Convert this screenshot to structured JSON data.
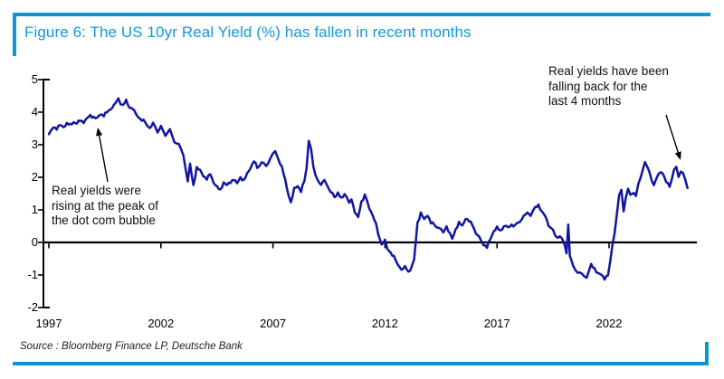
{
  "header": {
    "title": "Figure 6: The US 10yr Real Yield (%) has fallen in recent months"
  },
  "footer": {
    "source": "Source : Bloomberg Finance LP, Deutsche Bank"
  },
  "theme": {
    "accent": "#0c97d4",
    "title_color": "#1399d6",
    "line_color": "#10169f",
    "axis_color": "#000000",
    "annotation_color": "#0f0f0f"
  },
  "chart_data": {
    "type": "line",
    "title": "The US 10yr Real Yield (%) has fallen in recent months",
    "xlabel": "",
    "ylabel": "",
    "grid": false,
    "legend": "none",
    "zero_line": true,
    "ylim": [
      -2,
      5
    ],
    "xlim_years": [
      1996.8,
      2025.9
    ],
    "x_tick_years": [
      1997,
      2002,
      2007,
      2012,
      2017,
      2022
    ],
    "x_tick_labels": [
      "1997",
      "2002",
      "2007",
      "2012",
      "2017",
      "2022"
    ],
    "y_ticks": [
      5,
      4,
      3,
      2,
      1,
      0,
      -1,
      -2
    ],
    "y_tick_labels": [
      "5",
      "4",
      "3",
      "2",
      "1",
      "0",
      "-1",
      "-2"
    ],
    "series": [
      {
        "name": "US 10yr Real Yield (%)",
        "color": "#10169f",
        "points": [
          [
            1997.0,
            3.3
          ],
          [
            1997.1,
            3.45
          ],
          [
            1997.2,
            3.55
          ],
          [
            1997.35,
            3.5
          ],
          [
            1997.5,
            3.6
          ],
          [
            1997.65,
            3.55
          ],
          [
            1997.8,
            3.65
          ],
          [
            1997.95,
            3.6
          ],
          [
            1998.1,
            3.7
          ],
          [
            1998.25,
            3.65
          ],
          [
            1998.4,
            3.75
          ],
          [
            1998.55,
            3.7
          ],
          [
            1998.7,
            3.8
          ],
          [
            1998.85,
            3.9
          ],
          [
            1999.0,
            3.85
          ],
          [
            1999.15,
            3.8
          ],
          [
            1999.3,
            3.95
          ],
          [
            1999.45,
            3.9
          ],
          [
            1999.6,
            4.0
          ],
          [
            1999.75,
            4.1
          ],
          [
            1999.9,
            4.2
          ],
          [
            2000.0,
            4.3
          ],
          [
            2000.1,
            4.45
          ],
          [
            2000.2,
            4.25
          ],
          [
            2000.3,
            4.2
          ],
          [
            2000.45,
            4.35
          ],
          [
            2000.6,
            4.15
          ],
          [
            2000.8,
            4.05
          ],
          [
            2001.0,
            3.85
          ],
          [
            2001.15,
            3.75
          ],
          [
            2001.3,
            3.7
          ],
          [
            2001.5,
            3.5
          ],
          [
            2001.65,
            3.65
          ],
          [
            2001.85,
            3.4
          ],
          [
            2002.0,
            3.55
          ],
          [
            2002.2,
            3.3
          ],
          [
            2002.4,
            3.45
          ],
          [
            2002.6,
            3.1
          ],
          [
            2002.8,
            3.0
          ],
          [
            2003.0,
            2.7
          ],
          [
            2003.1,
            2.3
          ],
          [
            2003.2,
            1.85
          ],
          [
            2003.3,
            2.4
          ],
          [
            2003.45,
            1.75
          ],
          [
            2003.6,
            2.3
          ],
          [
            2003.75,
            2.2
          ],
          [
            2003.9,
            2.05
          ],
          [
            2004.05,
            1.95
          ],
          [
            2004.2,
            2.1
          ],
          [
            2004.35,
            1.85
          ],
          [
            2004.5,
            1.7
          ],
          [
            2004.65,
            1.6
          ],
          [
            2004.8,
            1.85
          ],
          [
            2004.95,
            1.75
          ],
          [
            2005.1,
            1.85
          ],
          [
            2005.25,
            1.95
          ],
          [
            2005.4,
            1.8
          ],
          [
            2005.55,
            2.0
          ],
          [
            2005.7,
            1.9
          ],
          [
            2005.85,
            2.1
          ],
          [
            2006.0,
            2.3
          ],
          [
            2006.15,
            2.5
          ],
          [
            2006.3,
            2.3
          ],
          [
            2006.5,
            2.45
          ],
          [
            2006.7,
            2.35
          ],
          [
            2006.9,
            2.6
          ],
          [
            2007.1,
            2.8
          ],
          [
            2007.25,
            2.55
          ],
          [
            2007.4,
            2.3
          ],
          [
            2007.55,
            1.9
          ],
          [
            2007.7,
            1.45
          ],
          [
            2007.8,
            1.2
          ],
          [
            2007.95,
            1.65
          ],
          [
            2008.1,
            1.75
          ],
          [
            2008.25,
            1.55
          ],
          [
            2008.4,
            1.9
          ],
          [
            2008.5,
            2.3
          ],
          [
            2008.6,
            3.1
          ],
          [
            2008.7,
            2.85
          ],
          [
            2008.8,
            2.35
          ],
          [
            2008.9,
            2.1
          ],
          [
            2009.0,
            1.9
          ],
          [
            2009.15,
            1.75
          ],
          [
            2009.3,
            1.95
          ],
          [
            2009.5,
            1.6
          ],
          [
            2009.65,
            1.5
          ],
          [
            2009.75,
            1.4
          ],
          [
            2009.9,
            1.5
          ],
          [
            2010.05,
            1.35
          ],
          [
            2010.2,
            1.5
          ],
          [
            2010.4,
            1.2
          ],
          [
            2010.5,
            1.35
          ],
          [
            2010.65,
            0.95
          ],
          [
            2010.8,
            0.75
          ],
          [
            2010.95,
            1.25
          ],
          [
            2011.1,
            1.45
          ],
          [
            2011.3,
            1.05
          ],
          [
            2011.45,
            0.85
          ],
          [
            2011.6,
            0.55
          ],
          [
            2011.7,
            0.25
          ],
          [
            2011.85,
            -0.05
          ],
          [
            2012.0,
            0.05
          ],
          [
            2012.1,
            -0.2
          ],
          [
            2012.25,
            -0.3
          ],
          [
            2012.4,
            -0.45
          ],
          [
            2012.5,
            -0.6
          ],
          [
            2012.65,
            -0.75
          ],
          [
            2012.8,
            -0.85
          ],
          [
            2012.9,
            -0.75
          ],
          [
            2013.05,
            -0.9
          ],
          [
            2013.2,
            -0.75
          ],
          [
            2013.3,
            -0.55
          ],
          [
            2013.45,
            0.6
          ],
          [
            2013.6,
            0.9
          ],
          [
            2013.75,
            0.7
          ],
          [
            2013.9,
            0.85
          ],
          [
            2014.05,
            0.6
          ],
          [
            2014.2,
            0.55
          ],
          [
            2014.4,
            0.45
          ],
          [
            2014.6,
            0.3
          ],
          [
            2014.75,
            0.5
          ],
          [
            2014.9,
            0.25
          ],
          [
            2015.0,
            0.1
          ],
          [
            2015.15,
            0.4
          ],
          [
            2015.3,
            0.6
          ],
          [
            2015.45,
            0.5
          ],
          [
            2015.6,
            0.75
          ],
          [
            2015.75,
            0.65
          ],
          [
            2015.9,
            0.55
          ],
          [
            2016.05,
            0.3
          ],
          [
            2016.2,
            0.15
          ],
          [
            2016.4,
            -0.05
          ],
          [
            2016.55,
            -0.15
          ],
          [
            2016.7,
            0.1
          ],
          [
            2016.85,
            0.35
          ],
          [
            2017.0,
            0.45
          ],
          [
            2017.15,
            0.35
          ],
          [
            2017.3,
            0.5
          ],
          [
            2017.5,
            0.45
          ],
          [
            2017.65,
            0.55
          ],
          [
            2017.8,
            0.5
          ],
          [
            2018.0,
            0.65
          ],
          [
            2018.2,
            0.8
          ],
          [
            2018.35,
            0.9
          ],
          [
            2018.5,
            0.85
          ],
          [
            2018.7,
            1.05
          ],
          [
            2018.85,
            1.15
          ],
          [
            2019.0,
            0.95
          ],
          [
            2019.15,
            0.8
          ],
          [
            2019.3,
            0.55
          ],
          [
            2019.5,
            0.35
          ],
          [
            2019.65,
            0.15
          ],
          [
            2019.8,
            0.2
          ],
          [
            2019.95,
            0.05
          ],
          [
            2020.1,
            -0.3
          ],
          [
            2020.18,
            0.55
          ],
          [
            2020.25,
            -0.4
          ],
          [
            2020.4,
            -0.75
          ],
          [
            2020.6,
            -0.9
          ],
          [
            2020.8,
            -1.0
          ],
          [
            2021.0,
            -1.05
          ],
          [
            2021.1,
            -0.9
          ],
          [
            2021.2,
            -0.7
          ],
          [
            2021.35,
            -0.8
          ],
          [
            2021.5,
            -0.95
          ],
          [
            2021.65,
            -1.0
          ],
          [
            2021.8,
            -1.1
          ],
          [
            2021.95,
            -1.0
          ],
          [
            2022.05,
            -0.6
          ],
          [
            2022.15,
            -0.1
          ],
          [
            2022.25,
            0.3
          ],
          [
            2022.35,
            0.9
          ],
          [
            2022.45,
            1.45
          ],
          [
            2022.55,
            1.6
          ],
          [
            2022.65,
            0.95
          ],
          [
            2022.75,
            1.4
          ],
          [
            2022.85,
            1.65
          ],
          [
            2022.95,
            1.45
          ],
          [
            2023.1,
            1.55
          ],
          [
            2023.2,
            1.4
          ],
          [
            2023.3,
            1.75
          ],
          [
            2023.4,
            2.0
          ],
          [
            2023.5,
            2.25
          ],
          [
            2023.6,
            2.45
          ],
          [
            2023.75,
            2.25
          ],
          [
            2023.9,
            1.95
          ],
          [
            2024.0,
            1.75
          ],
          [
            2024.1,
            1.9
          ],
          [
            2024.2,
            2.1
          ],
          [
            2024.3,
            2.2
          ],
          [
            2024.45,
            2.05
          ],
          [
            2024.55,
            1.85
          ],
          [
            2024.7,
            1.75
          ],
          [
            2024.8,
            1.95
          ],
          [
            2024.9,
            2.2
          ],
          [
            2025.0,
            2.3
          ],
          [
            2025.1,
            2.05
          ],
          [
            2025.2,
            2.2
          ],
          [
            2025.3,
            2.1
          ],
          [
            2025.4,
            1.9
          ],
          [
            2025.5,
            1.7
          ]
        ]
      }
    ],
    "annotations": [
      {
        "id": "dotcom-peak",
        "lines": [
          "Real yields were",
          "rising at the peak of",
          "the dot com bubble"
        ],
        "arrow_points_to": {
          "year": 1999.2,
          "value": 3.6
        }
      },
      {
        "id": "recent-fall",
        "lines": [
          "Real yields have been",
          "falling back for the",
          "last 4 months"
        ],
        "arrow_points_to": {
          "year": 2025.2,
          "value": 2.5
        }
      }
    ]
  }
}
